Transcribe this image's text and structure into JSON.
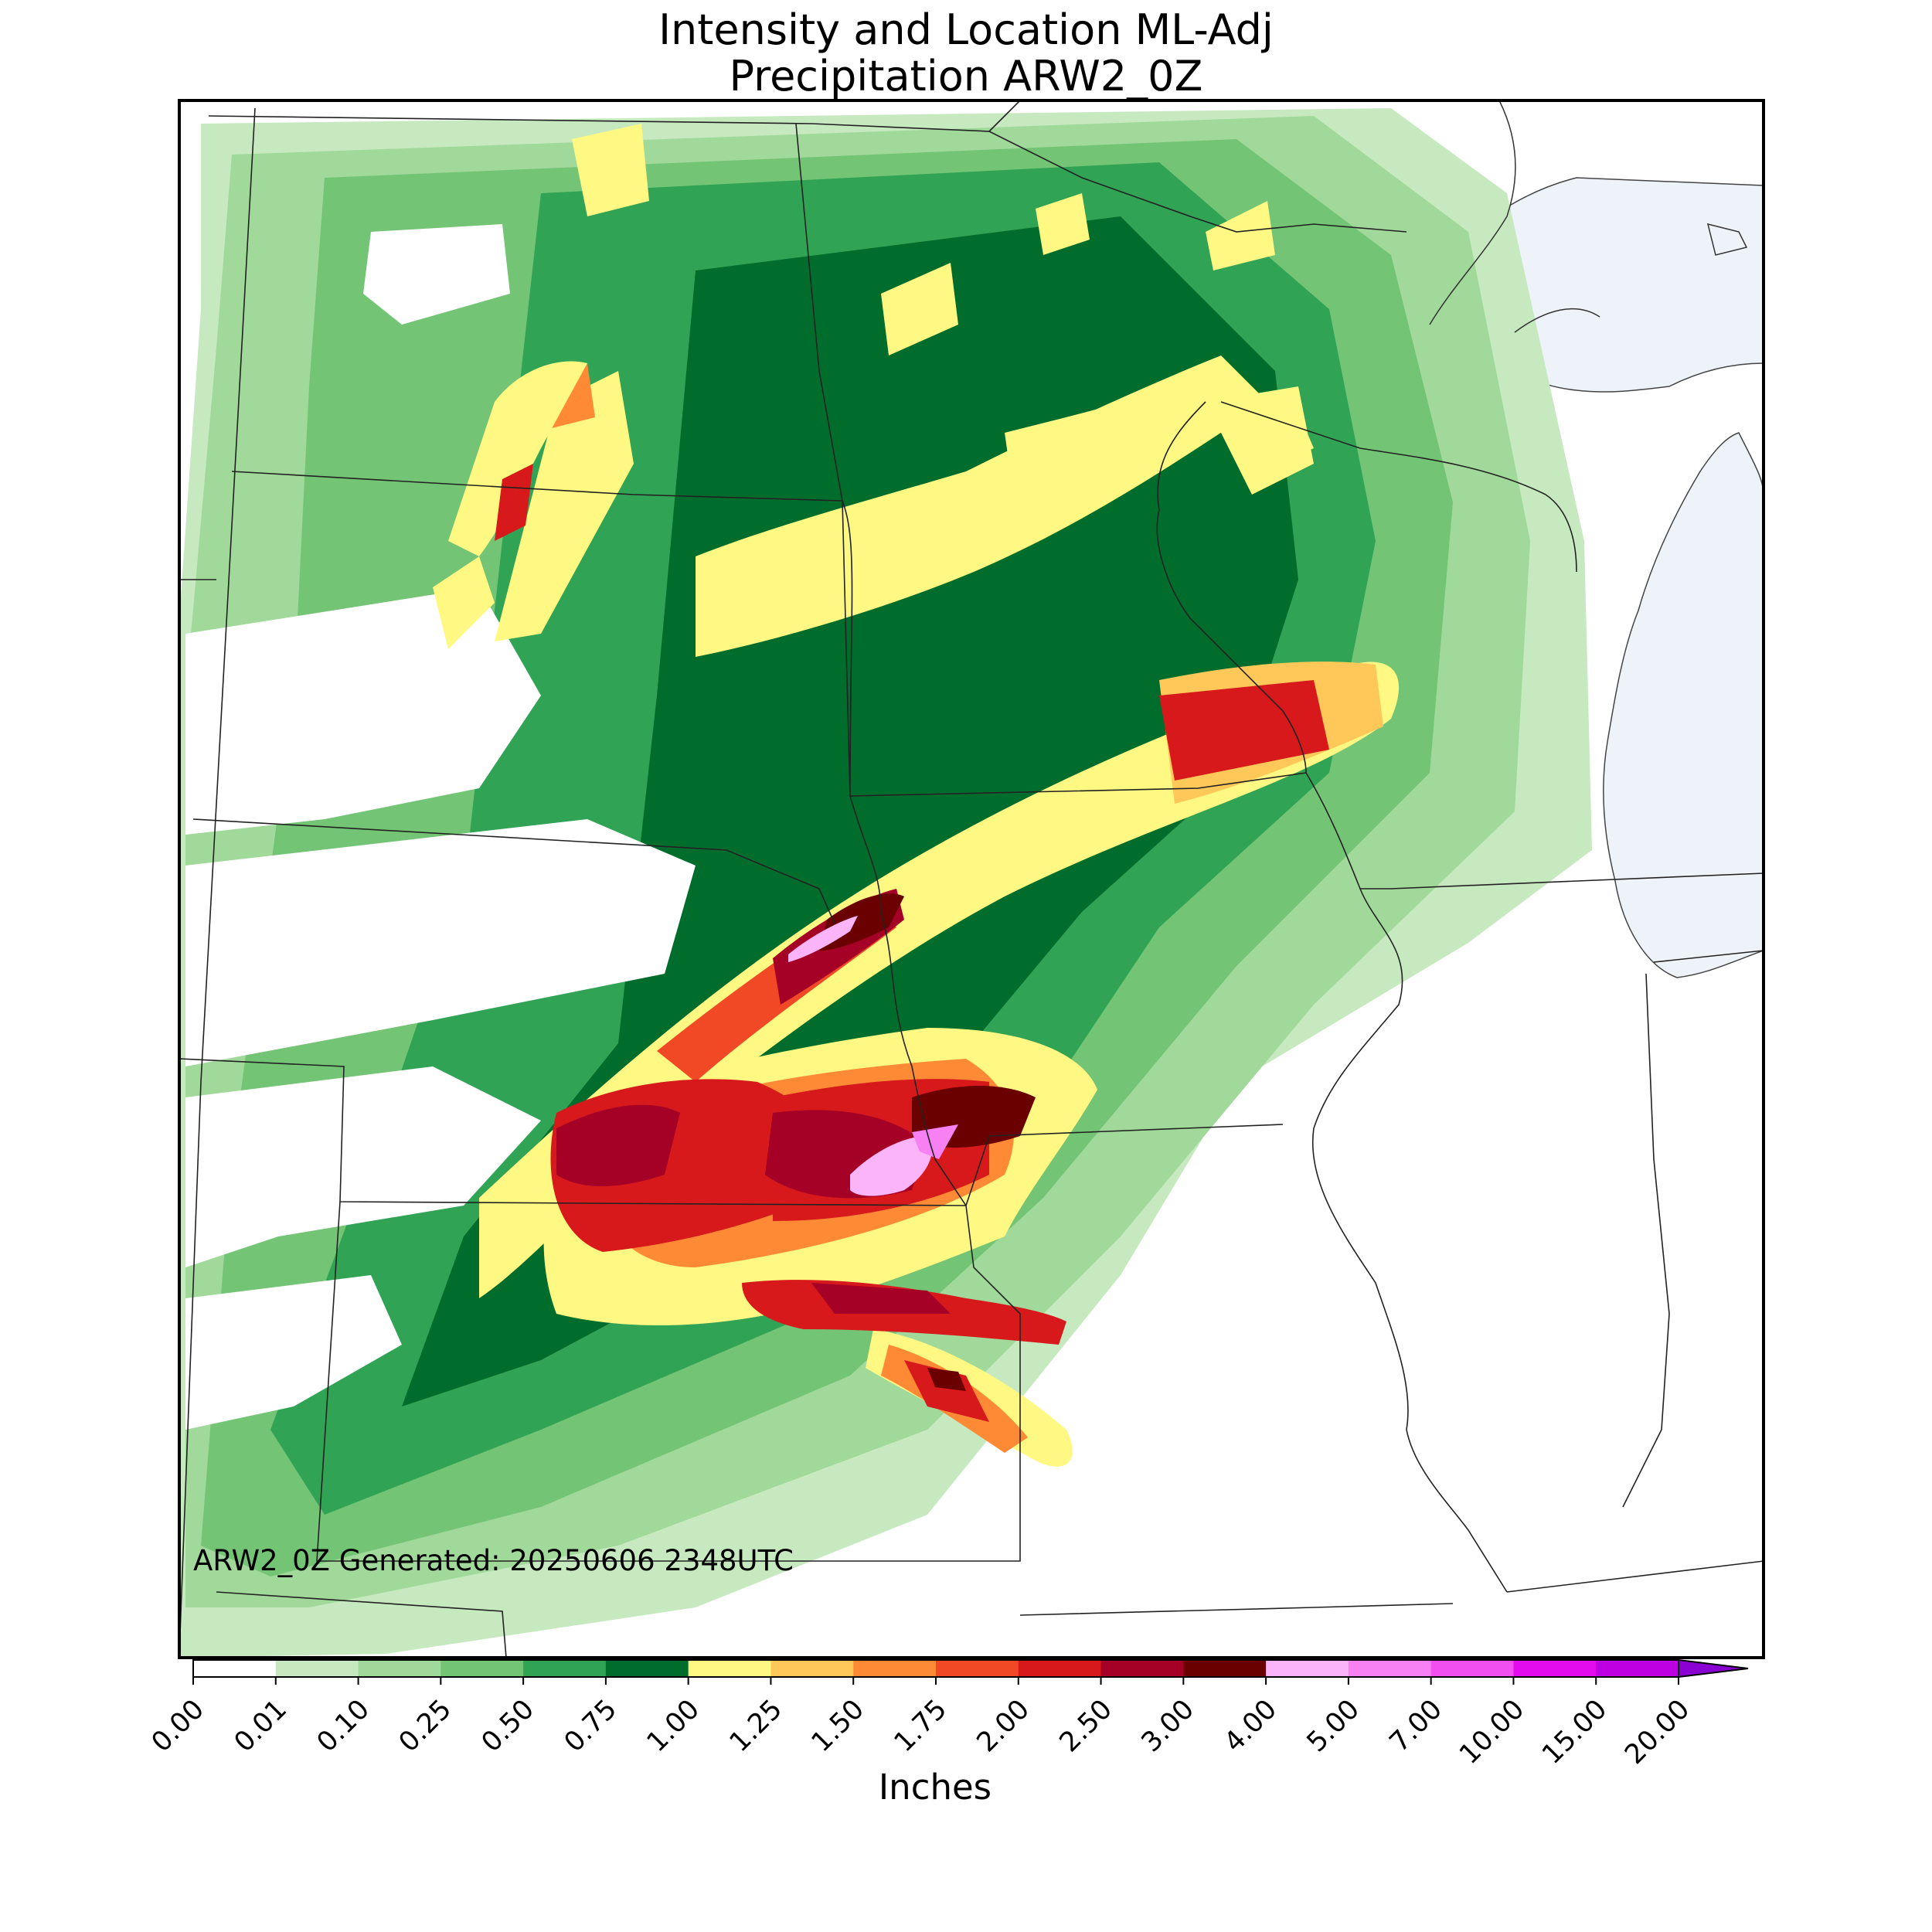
{
  "title": {
    "line1": "Intensity and Location ML-Adj",
    "line2": "Precipitation ARW2_0Z"
  },
  "footer": "ARW2_0Z Generated: 20250606 2348UTC",
  "colorbar": {
    "label": "Inches",
    "ticks": [
      "0.00",
      "0.01",
      "0.10",
      "0.25",
      "0.50",
      "0.75",
      "1.00",
      "1.25",
      "1.50",
      "1.75",
      "2.00",
      "2.50",
      "3.00",
      "4.00",
      "5.00",
      "7.00",
      "10.00",
      "15.00",
      "20.00"
    ],
    "colors": [
      "#ffffff",
      "#c7e9c0",
      "#a1d99b",
      "#74c476",
      "#31a354",
      "#006d2c",
      "#fff883",
      "#ffc859",
      "#ff8a35",
      "#f14925",
      "#d7191c",
      "#a50026",
      "#6b0000",
      "#fbb4f7",
      "#f781f3",
      "#f24ff0",
      "#e20cef",
      "#bd00e2",
      "#8a00d2"
    ],
    "extend": "max"
  },
  "legend_colors": {
    "lake": "#eef2f9",
    "boundary": "#222222"
  }
}
